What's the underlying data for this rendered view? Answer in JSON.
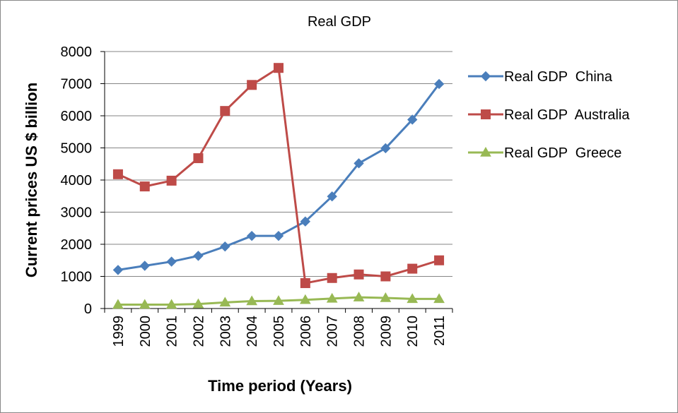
{
  "chart_data": {
    "type": "line",
    "title": "Real GDP",
    "xlabel": "Time period (Years)",
    "ylabel": "Current prices US $ billion",
    "ylim": [
      0,
      8000
    ],
    "yticks": [
      "0",
      "1000",
      "2000",
      "3000",
      "4000",
      "5000",
      "6000",
      "7000",
      "8000"
    ],
    "grid": true,
    "legend_position": "right",
    "categories": [
      "1999",
      "2000",
      "2001",
      "2002",
      "2003",
      "2004",
      "2005",
      "2006",
      "2007",
      "2008",
      "2009",
      "2010",
      "2011"
    ],
    "series": [
      {
        "name": "Real GDP  China",
        "color": "#4a7ebb",
        "marker": "diamond",
        "values": [
          1200,
          1330,
          1460,
          1640,
          1930,
          2260,
          2260,
          2710,
          3490,
          4520,
          4990,
          5880,
          6990
        ]
      },
      {
        "name": "Real GDP  Australia",
        "color": "#be4b48",
        "marker": "square",
        "values": [
          4180,
          3800,
          3980,
          4680,
          6150,
          6960,
          7490,
          790,
          950,
          1060,
          1000,
          1240,
          1500
        ]
      },
      {
        "name": "Real GDP  Greece",
        "color": "#98b954",
        "marker": "triangle",
        "values": [
          120,
          120,
          120,
          140,
          190,
          230,
          240,
          270,
          310,
          350,
          330,
          300,
          300
        ]
      }
    ]
  }
}
